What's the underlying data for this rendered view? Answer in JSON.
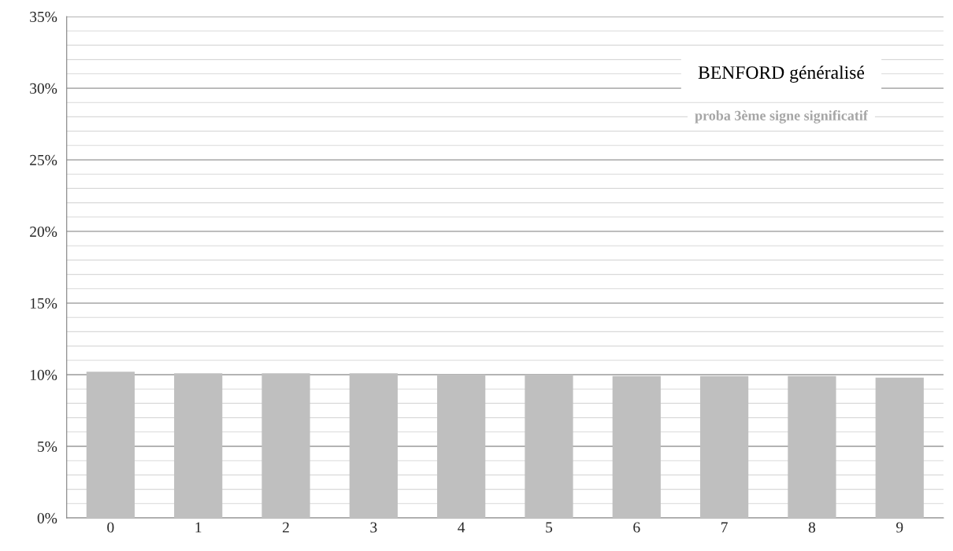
{
  "chart_data": {
    "type": "bar",
    "title": "BENFORD généralisé",
    "subtitle": "proba 3ème signe significatif",
    "categories": [
      "0",
      "1",
      "2",
      "3",
      "4",
      "5",
      "6",
      "7",
      "8",
      "9"
    ],
    "values": [
      10.2,
      10.1,
      10.1,
      10.1,
      10.0,
      10.0,
      9.9,
      9.9,
      9.9,
      9.8
    ],
    "color": "#bfbfbf",
    "ylim": [
      0,
      35
    ],
    "yticks": [
      {
        "value": 0,
        "label": "0%"
      },
      {
        "value": 5,
        "label": "5%"
      },
      {
        "value": 10,
        "label": "10%"
      },
      {
        "value": 15,
        "label": "15%"
      },
      {
        "value": 20,
        "label": "20%"
      },
      {
        "value": 25,
        "label": "25%"
      },
      {
        "value": 30,
        "label": "30%"
      },
      {
        "value": 35,
        "label": "35%"
      }
    ],
    "grid": "y",
    "legend": false
  }
}
